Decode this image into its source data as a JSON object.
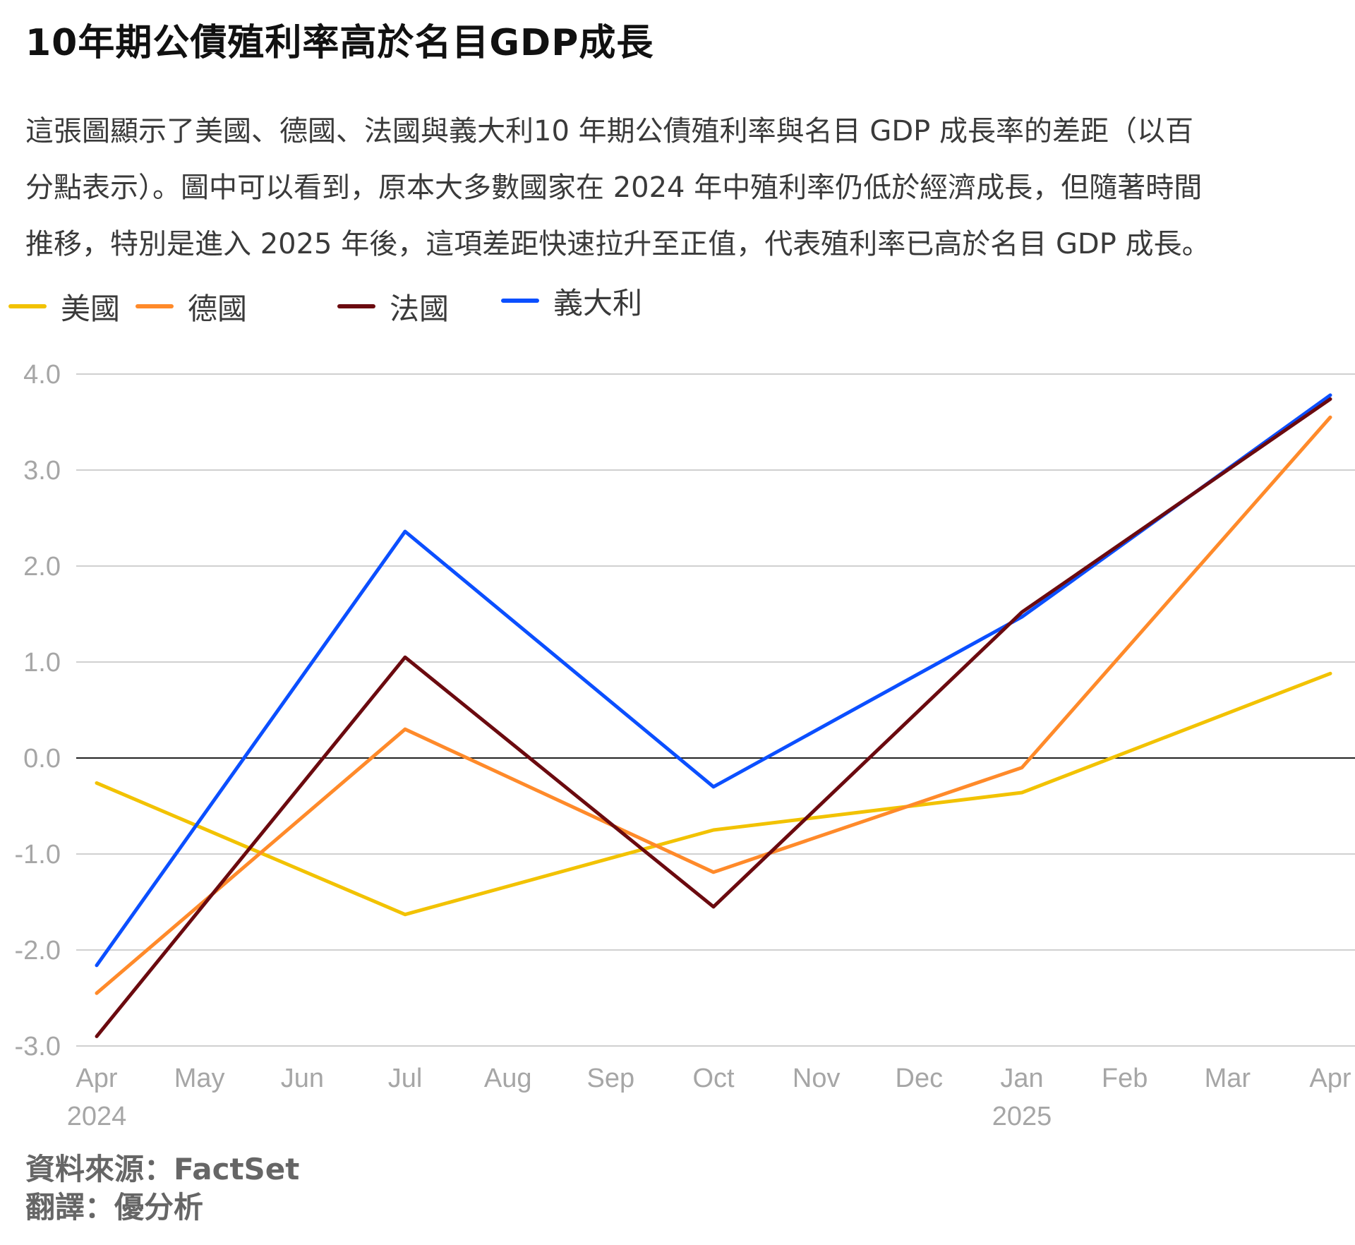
{
  "title": "10年期公債殖利率高於名目GDP成長",
  "description": [
    "這張圖顯示了美國、德國、法國與義大利10 年期公債殖利率與名目 GDP 成長率的差距（以百",
    "分點表示）。圖中可以看到，原本大多數國家在 2024 年中殖利率仍低於經濟成長，但隨著時間",
    "推移，特別是進入 2025 年後，這項差距快速拉升至正值，代表殖利率已高於名目 GDP 成長。"
  ],
  "legend": [
    {
      "name": "美國",
      "color": "#f2c200"
    },
    {
      "name": "德國",
      "color": "#ff8a2a"
    },
    {
      "name": "法國",
      "color": "#6b0a0f"
    },
    {
      "name": "義大利",
      "color": "#0b4fff"
    }
  ],
  "chart_data": {
    "type": "line",
    "x": [
      "Apr",
      "May",
      "Jun",
      "Jul",
      "Aug",
      "Sep",
      "Oct",
      "Nov",
      "Dec",
      "Jan",
      "Feb",
      "Mar",
      "Apr"
    ],
    "year_labels": [
      {
        "index": 0,
        "label": "2024"
      },
      {
        "index": 9,
        "label": "2025"
      }
    ],
    "ylim": [
      -3.0,
      4.0
    ],
    "yticks": [
      "4.0",
      "3.0",
      "2.0",
      "1.0",
      "0.0",
      "-1.0",
      "-2.0",
      "-3.0"
    ],
    "grid": true,
    "series": [
      {
        "name": "美國",
        "color": "#f2c200",
        "points": [
          [
            0,
            -0.26
          ],
          [
            3,
            -1.63
          ],
          [
            6,
            -0.75
          ],
          [
            9,
            -0.36
          ],
          [
            12,
            0.88
          ]
        ]
      },
      {
        "name": "德國",
        "color": "#ff8a2a",
        "points": [
          [
            0,
            -2.45
          ],
          [
            3,
            0.3
          ],
          [
            6,
            -1.19
          ],
          [
            9,
            -0.1
          ],
          [
            12,
            3.55
          ]
        ]
      },
      {
        "name": "義大利",
        "color": "#0b4fff",
        "points": [
          [
            0,
            -2.16
          ],
          [
            3,
            2.36
          ],
          [
            6,
            -0.3
          ],
          [
            9,
            1.47
          ],
          [
            12,
            3.78
          ]
        ]
      },
      {
        "name": "法國",
        "color": "#6b0a0f",
        "points": [
          [
            0,
            -2.9
          ],
          [
            3,
            1.05
          ],
          [
            6,
            -1.55
          ],
          [
            9,
            1.52
          ],
          [
            12,
            3.74
          ]
        ]
      }
    ]
  },
  "source": {
    "line1": "資料來源：FactSet",
    "line2": "翻譯：優分析"
  }
}
